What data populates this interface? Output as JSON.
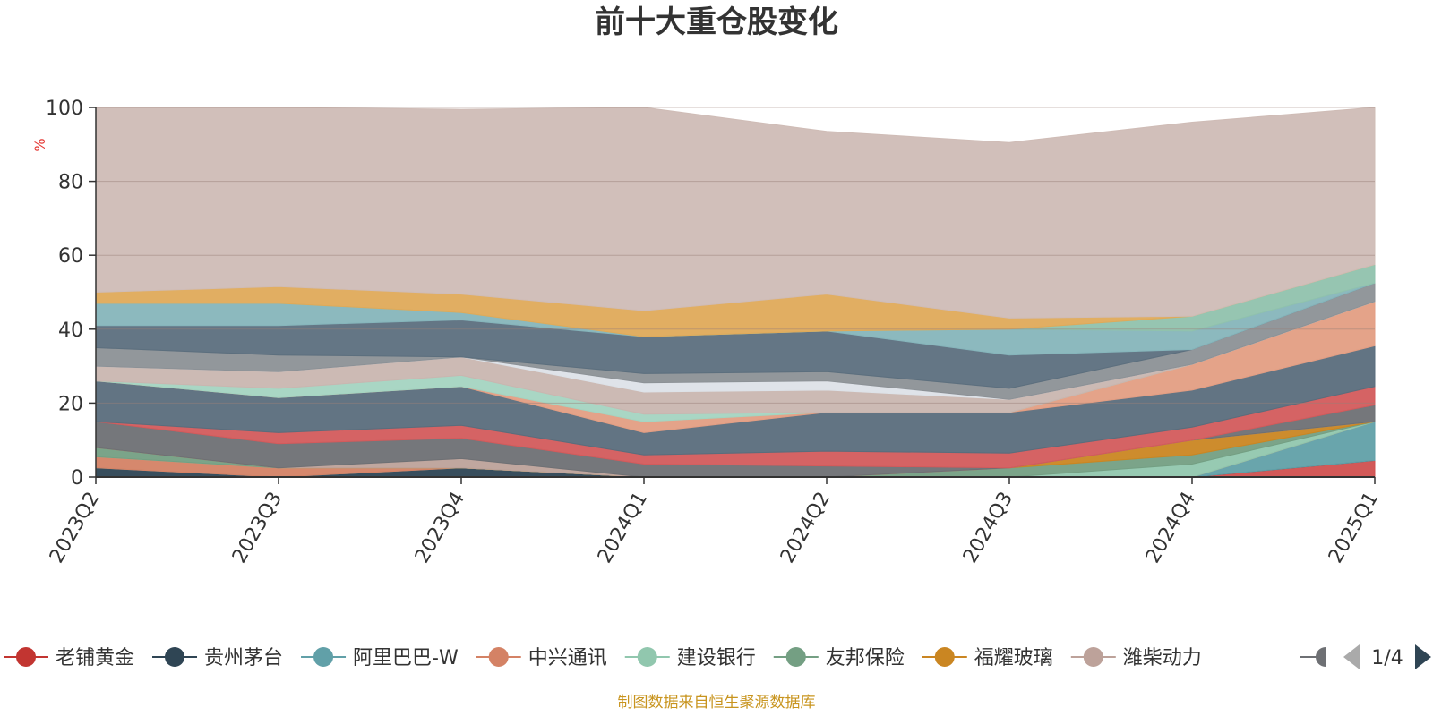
{
  "chart_data": {
    "type": "area",
    "stacked": true,
    "title": "前十大重仓股变化",
    "ylabel": "%",
    "ylim": [
      0,
      100
    ],
    "yticks": [
      0,
      20,
      40,
      60,
      80,
      100
    ],
    "grid": true,
    "legend_position": "bottom",
    "categories": [
      "2023Q2",
      "2023Q3",
      "2023Q4",
      "2024Q1",
      "2024Q2",
      "2024Q3",
      "2024Q4",
      "2025Q1"
    ],
    "series": [
      {
        "name": "老铺黄金",
        "color": "#d0504f",
        "values": [
          0,
          0,
          0,
          0,
          0,
          0,
          0,
          4.5
        ]
      },
      {
        "name": "贵州茅台",
        "color": "#2d4554",
        "values": [
          2.5,
          0,
          2.5,
          0,
          0,
          0,
          0,
          0
        ]
      },
      {
        "name": "阿里巴巴-W",
        "color": "#61a0a8",
        "values": [
          0,
          0,
          0,
          0,
          0,
          0,
          0,
          10.5
        ]
      },
      {
        "name": "中兴通讯",
        "color": "#d48265",
        "values": [
          3,
          2.5,
          0,
          0,
          0,
          0,
          0,
          0
        ]
      },
      {
        "name": "建设银行",
        "color": "#91c7ae",
        "values": [
          0,
          0,
          0,
          0,
          0,
          0,
          3.5,
          0
        ]
      },
      {
        "name": "友邦保险",
        "color": "#749f83",
        "values": [
          2.5,
          0,
          0,
          0,
          0,
          2.5,
          2.5,
          0
        ]
      },
      {
        "name": "福耀玻璃",
        "color": "#ca8622",
        "values": [
          0,
          0,
          0,
          0,
          0,
          0,
          4,
          0
        ]
      },
      {
        "name": "潍柴动力",
        "color": "#bda29a",
        "values": [
          0,
          0,
          2.5,
          0,
          0,
          0,
          0,
          0
        ]
      },
      {
        "name": "",
        "color": "#6e7074",
        "values": [
          7,
          6.5,
          5.5,
          3.5,
          3,
          0,
          0,
          4.5
        ]
      },
      {
        "name": "",
        "color": "#d35b5c",
        "values": [
          0,
          3,
          3.5,
          2.5,
          4,
          4,
          3.5,
          5
        ]
      },
      {
        "name": "",
        "color": "#5a6d7c",
        "values": [
          11,
          9.5,
          10.5,
          6,
          10.5,
          11,
          10,
          11
        ]
      },
      {
        "name": "",
        "color": "#e39e83",
        "values": [
          0,
          0,
          0,
          3,
          0,
          0,
          7,
          12
        ]
      },
      {
        "name": "",
        "color": "#a4d4c1",
        "values": [
          0,
          2.5,
          3,
          2,
          0,
          0,
          0,
          0
        ]
      },
      {
        "name": "",
        "color": "#c9b6b0",
        "values": [
          4,
          4.5,
          5,
          6,
          6,
          3.5,
          0,
          0
        ]
      },
      {
        "name": "",
        "color": "#dde2e8",
        "values": [
          0,
          0,
          0,
          2.5,
          2.5,
          0,
          0,
          0
        ]
      },
      {
        "name": "",
        "color": "#8c9196",
        "values": [
          5,
          4.5,
          0,
          2.5,
          2.5,
          3,
          4,
          5
        ]
      },
      {
        "name": "",
        "color": "#5c6f7e",
        "values": [
          6,
          8,
          10,
          10,
          11,
          9,
          0,
          0
        ]
      },
      {
        "name": "",
        "color": "#86b5bb",
        "values": [
          6,
          6,
          2,
          0,
          0,
          7,
          5,
          0
        ]
      },
      {
        "name": "",
        "color": "#90c2ad",
        "values": [
          0,
          0,
          0,
          0,
          0,
          0,
          4,
          5
        ]
      },
      {
        "name": "",
        "color": "#dfaa5a",
        "values": [
          3,
          4.5,
          5,
          7,
          10,
          3,
          0,
          0
        ]
      },
      {
        "name": "",
        "color": "#cfbcb6",
        "values": [
          50,
          48.5,
          50,
          55,
          44,
          47.5,
          52.5,
          42.5
        ]
      }
    ]
  },
  "legend": {
    "items": [
      {
        "name": "老铺黄金",
        "color": "#c23531"
      },
      {
        "name": "贵州茅台",
        "color": "#2f4554"
      },
      {
        "name": "阿里巴巴-W",
        "color": "#61a0a8"
      },
      {
        "name": "中兴通讯",
        "color": "#d48265"
      },
      {
        "name": "建设银行",
        "color": "#91c7ae"
      },
      {
        "name": "友邦保险",
        "color": "#749f83"
      },
      {
        "name": "福耀玻璃",
        "color": "#ca8622"
      },
      {
        "name": "潍柴动力",
        "color": "#bda29a"
      }
    ],
    "next_marker_color": "#6e7074",
    "page_indicator": "1/4",
    "prev_icon_color": "#aaaaaa",
    "next_icon_color": "#2f4554"
  },
  "source_note": "制图数据来自恒生聚源数据库",
  "source_note_color": "#c8941e"
}
